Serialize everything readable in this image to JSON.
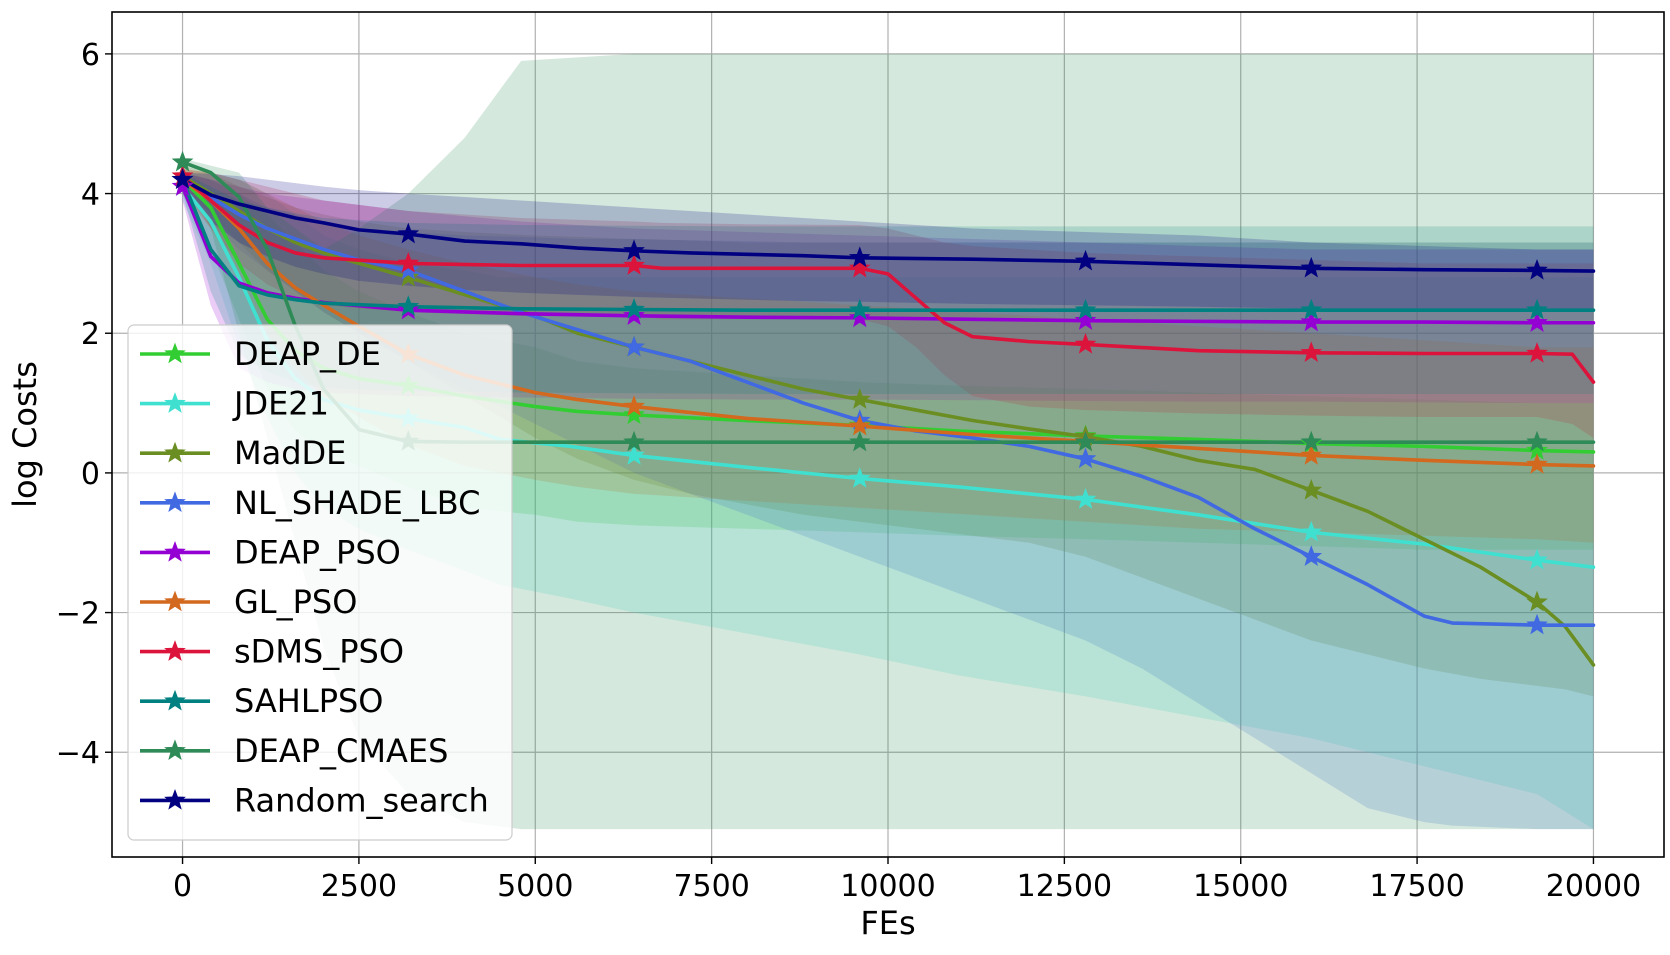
{
  "chart_data": {
    "type": "line",
    "title": "",
    "xlabel": "FEs",
    "ylabel": "log Costs",
    "xlim": [
      -1000,
      21000
    ],
    "ylim": [
      -5.5,
      6.6
    ],
    "xticks": [
      0,
      2500,
      5000,
      7500,
      10000,
      12500,
      15000,
      17500,
      20000
    ],
    "xtick_labels": [
      "0",
      "2500",
      "5000",
      "7500",
      "10000",
      "12500",
      "15000",
      "17500",
      "20000"
    ],
    "yticks": [
      -4,
      -2,
      0,
      2,
      4,
      6
    ],
    "ytick_labels": [
      "−4",
      "−2",
      "0",
      "2",
      "4",
      "6"
    ],
    "grid": true,
    "legend_position": "lower-left",
    "marker": "star",
    "marker_x": [
      0,
      3200,
      6400,
      9600,
      12800,
      16000,
      19200
    ],
    "series": [
      {
        "name": "DEAP_DE",
        "color": "#32cd32",
        "x": [
          0,
          400,
          800,
          1200,
          1600,
          2000,
          2500,
          3200,
          4000,
          5000,
          5600,
          6400,
          8000,
          9600,
          11000,
          12800,
          14400,
          16000,
          17600,
          19200,
          20000
        ],
        "y": [
          4.2,
          3.8,
          3.0,
          2.2,
          1.75,
          1.5,
          1.35,
          1.25,
          1.1,
          0.95,
          0.88,
          0.83,
          0.75,
          0.68,
          0.6,
          0.53,
          0.48,
          0.42,
          0.38,
          0.32,
          0.3
        ],
        "band_upper": [
          4.3,
          4.2,
          4.0,
          3.7,
          3.3,
          2.9,
          2.6,
          2.3,
          2.0,
          1.8,
          1.6,
          1.5,
          1.4,
          1.3,
          1.25,
          1.2,
          1.15,
          1.1,
          1.05,
          1.0,
          1.0
        ],
        "band_lower": [
          4.0,
          3.2,
          2.2,
          1.2,
          0.6,
          0.3,
          0.1,
          -0.2,
          -0.5,
          -0.6,
          -0.7,
          -0.75,
          -0.8,
          -0.85,
          -0.9,
          -0.95,
          -1.0,
          -1.05,
          -1.1,
          -1.1,
          -1.1
        ]
      },
      {
        "name": "JDE21",
        "color": "#40e0d0",
        "x": [
          0,
          400,
          800,
          1200,
          1600,
          2000,
          2500,
          3200,
          4000,
          4500,
          5500,
          6400,
          8000,
          9600,
          11000,
          12800,
          14400,
          16000,
          17600,
          19200,
          20000
        ],
        "y": [
          4.1,
          3.6,
          2.8,
          1.9,
          1.35,
          1.05,
          0.9,
          0.78,
          0.65,
          0.48,
          0.38,
          0.25,
          0.08,
          -0.08,
          -0.2,
          -0.38,
          -0.6,
          -0.85,
          -1.02,
          -1.25,
          -1.35
        ],
        "band_upper": [
          4.3,
          4.3,
          4.2,
          4.0,
          3.7,
          3.4,
          3.2,
          3.0,
          2.9,
          2.8,
          2.8,
          2.8,
          2.8,
          2.8,
          2.8,
          2.8,
          2.8,
          2.8,
          2.8,
          2.8,
          2.8
        ],
        "band_lower": [
          3.9,
          3.0,
          1.8,
          0.8,
          0.0,
          -0.5,
          -0.8,
          -1.1,
          -1.4,
          -1.6,
          -1.8,
          -2.0,
          -2.3,
          -2.6,
          -2.9,
          -3.2,
          -3.5,
          -3.8,
          -4.2,
          -4.6,
          -5.1
        ]
      },
      {
        "name": "MadDE",
        "color": "#6b8e23",
        "x": [
          0,
          400,
          800,
          1200,
          1600,
          2000,
          2500,
          3200,
          4000,
          5000,
          5600,
          6400,
          7200,
          8000,
          8800,
          9600,
          10400,
          11200,
          12000,
          12800,
          13600,
          14400,
          15200,
          16000,
          16800,
          17600,
          18400,
          19200,
          19600,
          20000
        ],
        "y": [
          4.25,
          4.0,
          3.75,
          3.5,
          3.3,
          3.15,
          3.0,
          2.8,
          2.55,
          2.25,
          2.0,
          1.8,
          1.6,
          1.4,
          1.2,
          1.05,
          0.9,
          0.75,
          0.63,
          0.52,
          0.38,
          0.18,
          0.05,
          -0.25,
          -0.55,
          -0.95,
          -1.35,
          -1.85,
          -2.2,
          -2.75
        ],
        "band_upper": [
          4.4,
          4.3,
          4.1,
          3.95,
          3.8,
          3.7,
          3.6,
          3.5,
          3.45,
          3.4,
          3.38,
          3.35,
          3.33,
          3.3,
          3.3,
          3.3,
          3.3,
          3.3,
          3.3,
          3.3,
          3.3,
          3.3,
          3.3,
          3.3,
          3.3,
          3.3,
          3.3,
          3.3,
          3.3,
          3.3
        ],
        "band_lower": [
          4.1,
          3.7,
          3.3,
          2.9,
          2.6,
          2.3,
          2.0,
          1.6,
          1.1,
          0.5,
          0.2,
          -0.1,
          -0.3,
          -0.45,
          -0.6,
          -0.7,
          -0.8,
          -0.9,
          -1.0,
          -1.2,
          -1.5,
          -1.8,
          -2.1,
          -2.4,
          -2.6,
          -2.8,
          -2.95,
          -3.05,
          -3.1,
          -3.2
        ]
      },
      {
        "name": "NL_SHADE_LBC",
        "color": "#4169e1",
        "x": [
          0,
          400,
          800,
          1200,
          1600,
          2000,
          2500,
          3200,
          4000,
          4800,
          5600,
          6400,
          7200,
          8000,
          8800,
          9600,
          10400,
          11200,
          12000,
          12800,
          13600,
          14400,
          15200,
          16000,
          16800,
          17600,
          18000,
          19200,
          20000
        ],
        "y": [
          4.2,
          3.95,
          3.7,
          3.5,
          3.35,
          3.2,
          3.05,
          2.9,
          2.6,
          2.3,
          2.05,
          1.8,
          1.6,
          1.3,
          1.0,
          0.75,
          0.6,
          0.5,
          0.38,
          0.2,
          -0.05,
          -0.35,
          -0.8,
          -1.2,
          -1.6,
          -2.05,
          -2.15,
          -2.18,
          -2.18
        ],
        "band_upper": [
          4.3,
          4.2,
          4.0,
          3.8,
          3.7,
          3.6,
          3.5,
          3.45,
          3.4,
          3.38,
          3.35,
          3.35,
          3.33,
          3.32,
          3.3,
          3.3,
          3.3,
          3.3,
          3.3,
          3.3,
          3.3,
          3.3,
          3.3,
          3.3,
          3.3,
          3.3,
          3.3,
          3.3,
          3.3
        ],
        "band_lower": [
          4.0,
          3.6,
          3.2,
          2.9,
          2.6,
          2.3,
          2.0,
          1.6,
          1.2,
          0.8,
          0.4,
          0.0,
          -0.3,
          -0.6,
          -0.9,
          -1.2,
          -1.5,
          -1.8,
          -2.1,
          -2.4,
          -2.8,
          -3.3,
          -3.8,
          -4.3,
          -4.8,
          -5.0,
          -5.05,
          -5.1,
          -5.1
        ]
      },
      {
        "name": "DEAP_PSO",
        "color": "#9400d3",
        "x": [
          0,
          400,
          800,
          1200,
          1600,
          2000,
          3200,
          4800,
          6400,
          8000,
          9600,
          11200,
          12800,
          14400,
          16000,
          17600,
          19200,
          20000
        ],
        "y": [
          4.1,
          3.1,
          2.72,
          2.58,
          2.5,
          2.44,
          2.33,
          2.28,
          2.25,
          2.23,
          2.22,
          2.2,
          2.18,
          2.17,
          2.16,
          2.16,
          2.15,
          2.15
        ],
        "band_upper": [
          4.3,
          4.2,
          4.1,
          4.0,
          3.95,
          3.9,
          3.75,
          3.6,
          3.5,
          3.45,
          3.4,
          3.35,
          3.3,
          3.25,
          3.2,
          3.2,
          3.2,
          3.2
        ],
        "band_lower": [
          3.9,
          2.4,
          1.5,
          1.3,
          1.2,
          1.15,
          1.1,
          1.08,
          1.06,
          1.05,
          1.05,
          1.04,
          1.03,
          1.02,
          1.02,
          1.01,
          1.0,
          1.0
        ]
      },
      {
        "name": "GL_PSO",
        "color": "#d2691e",
        "x": [
          0,
          400,
          800,
          1200,
          1600,
          2000,
          2500,
          3200,
          4000,
          5000,
          5600,
          6400,
          8000,
          9600,
          11200,
          12800,
          14400,
          16000,
          17600,
          19200,
          20000
        ],
        "y": [
          4.2,
          3.9,
          3.5,
          3.0,
          2.65,
          2.4,
          2.1,
          1.7,
          1.4,
          1.15,
          1.05,
          0.95,
          0.78,
          0.67,
          0.55,
          0.45,
          0.35,
          0.25,
          0.18,
          0.12,
          0.1
        ],
        "band_upper": [
          4.35,
          4.3,
          4.2,
          4.0,
          3.8,
          3.6,
          3.4,
          3.2,
          3.0,
          2.8,
          2.7,
          2.6,
          2.5,
          2.4,
          2.3,
          2.2,
          2.1,
          2.0,
          1.9,
          1.8,
          1.8
        ],
        "band_lower": [
          4.0,
          3.5,
          2.8,
          2.0,
          1.5,
          1.1,
          0.8,
          0.4,
          0.1,
          -0.1,
          -0.2,
          -0.3,
          -0.4,
          -0.5,
          -0.6,
          -0.7,
          -0.8,
          -0.85,
          -0.9,
          -0.95,
          -1.0
        ]
      },
      {
        "name": "sDMS_PSO",
        "color": "#dc143c",
        "x": [
          0,
          400,
          800,
          1200,
          1600,
          2000,
          3200,
          4800,
          6400,
          6800,
          8000,
          9600,
          10000,
          10400,
          10800,
          11200,
          12000,
          12800,
          14400,
          16000,
          17600,
          19200,
          19700,
          20000
        ],
        "y": [
          4.25,
          3.9,
          3.55,
          3.3,
          3.15,
          3.08,
          3.0,
          2.97,
          2.97,
          2.93,
          2.93,
          2.93,
          2.85,
          2.5,
          2.15,
          1.95,
          1.88,
          1.84,
          1.75,
          1.72,
          1.71,
          1.71,
          1.7,
          1.3
        ],
        "band_upper": [
          4.35,
          4.3,
          4.2,
          4.1,
          4.0,
          3.9,
          3.75,
          3.65,
          3.6,
          3.58,
          3.56,
          3.55,
          3.5,
          3.4,
          3.3,
          3.25,
          3.2,
          3.15,
          3.1,
          3.05,
          3.0,
          3.0,
          3.0,
          3.0
        ],
        "band_lower": [
          4.1,
          3.5,
          3.0,
          2.7,
          2.5,
          2.4,
          2.3,
          2.25,
          2.25,
          2.2,
          2.2,
          2.2,
          2.1,
          1.8,
          1.4,
          1.1,
          0.95,
          0.9,
          0.85,
          0.82,
          0.8,
          0.8,
          0.7,
          0.5
        ]
      },
      {
        "name": "SAHLPSO",
        "color": "#008080",
        "x": [
          0,
          400,
          800,
          1200,
          1600,
          2000,
          3200,
          4800,
          6400,
          8000,
          9600,
          11200,
          12800,
          14400,
          16000,
          17600,
          19200,
          20000
        ],
        "y": [
          4.2,
          3.2,
          2.68,
          2.55,
          2.48,
          2.43,
          2.38,
          2.35,
          2.34,
          2.33,
          2.33,
          2.33,
          2.33,
          2.33,
          2.33,
          2.33,
          2.33,
          2.33
        ],
        "band_upper": [
          4.3,
          4.1,
          3.9,
          3.8,
          3.72,
          3.65,
          3.58,
          3.55,
          3.54,
          3.53,
          3.53,
          3.53,
          3.53,
          3.53,
          3.53,
          3.53,
          3.53,
          3.53
        ],
        "band_lower": [
          4.0,
          2.6,
          1.7,
          1.45,
          1.3,
          1.22,
          1.17,
          1.15,
          1.14,
          1.13,
          1.13,
          1.13,
          1.13,
          1.13,
          1.13,
          1.13,
          1.13,
          1.13
        ]
      },
      {
        "name": "DEAP_CMAES",
        "color": "#2e8b57",
        "x": [
          0,
          400,
          800,
          1200,
          1600,
          2000,
          2500,
          3200,
          4000,
          4800,
          6400,
          8000,
          9600,
          11200,
          12800,
          14400,
          16000,
          17600,
          19200,
          20000
        ],
        "y": [
          4.45,
          4.3,
          3.95,
          3.2,
          2.1,
          1.2,
          0.62,
          0.45,
          0.44,
          0.44,
          0.44,
          0.44,
          0.44,
          0.44,
          0.44,
          0.44,
          0.44,
          0.44,
          0.44,
          0.44
        ],
        "band_upper": [
          4.5,
          4.4,
          4.3,
          3.8,
          3.5,
          3.2,
          3.5,
          4.0,
          4.8,
          5.9,
          6.0,
          6.0,
          6.0,
          6.0,
          6.0,
          6.0,
          6.0,
          6.0,
          6.0,
          6.0
        ],
        "band_lower": [
          4.3,
          3.5,
          2.0,
          0.5,
          -1.0,
          -2.5,
          -3.8,
          -4.6,
          -5.0,
          -5.1,
          -5.1,
          -5.1,
          -5.1,
          -5.1,
          -5.1,
          -5.1,
          -5.1,
          -5.1,
          -5.1,
          -5.1
        ]
      },
      {
        "name": "Random_search",
        "color": "#000080",
        "x": [
          0,
          400,
          800,
          1200,
          1600,
          2000,
          2500,
          3200,
          4000,
          4800,
          5600,
          6400,
          7200,
          8000,
          8800,
          9600,
          11200,
          12800,
          14400,
          16000,
          17600,
          19200,
          20000
        ],
        "y": [
          4.2,
          3.98,
          3.85,
          3.75,
          3.65,
          3.58,
          3.48,
          3.42,
          3.32,
          3.28,
          3.22,
          3.18,
          3.15,
          3.13,
          3.11,
          3.08,
          3.06,
          3.03,
          2.98,
          2.93,
          2.91,
          2.9,
          2.89
        ],
        "band_upper": [
          4.3,
          4.28,
          4.25,
          4.2,
          4.15,
          4.1,
          4.05,
          4.0,
          3.95,
          3.9,
          3.85,
          3.8,
          3.75,
          3.7,
          3.65,
          3.6,
          3.5,
          3.45,
          3.4,
          3.3,
          3.25,
          3.2,
          3.2
        ],
        "band_lower": [
          4.1,
          3.6,
          3.3,
          3.1,
          2.95,
          2.85,
          2.75,
          2.68,
          2.62,
          2.58,
          2.55,
          2.52,
          2.5,
          2.48,
          2.46,
          2.45,
          2.42,
          2.4,
          2.38,
          2.35,
          2.35,
          2.35,
          2.35
        ]
      }
    ]
  }
}
